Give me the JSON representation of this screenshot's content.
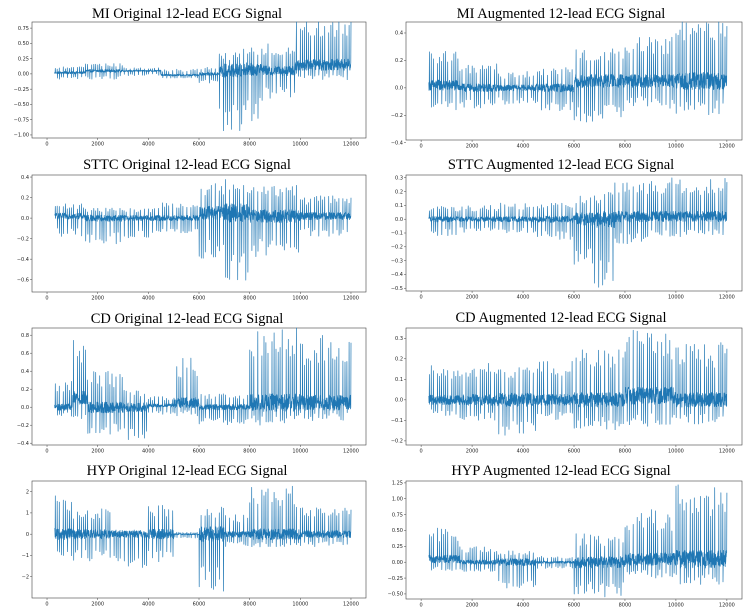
{
  "chart_data": [
    {
      "type": "line",
      "title": "MI Original 12-lead ECG Signal",
      "xlabel": "",
      "ylabel": "",
      "xlim": [
        0,
        12000
      ],
      "ylim": [
        -1.05,
        0.85
      ],
      "xticks": [
        0,
        2000,
        4000,
        6000,
        8000,
        10000,
        12000
      ],
      "yticks": [
        0.75,
        0.5,
        0.25,
        0.0,
        -0.25,
        -0.5,
        -0.75,
        -1.0
      ],
      "ytick_labels": [
        "0.75",
        "0.50",
        "0.25",
        "0.00",
        "−0.25",
        "−0.50",
        "−0.75",
        "−1.00"
      ],
      "series": [
        {
          "name": "ECG",
          "color": "#1f77b4",
          "segments": [
            [
              0,
              1500,
              0.1,
              -0.12,
              0.02
            ],
            [
              1500,
              3000,
              0.12,
              -0.14,
              0.05
            ],
            [
              3000,
              4500,
              0.05,
              -0.08,
              0.05
            ],
            [
              4500,
              6000,
              0.1,
              -0.05,
              -0.02
            ],
            [
              6000,
              6800,
              0.12,
              -0.15,
              0.0
            ],
            [
              6800,
              7700,
              0.3,
              -1.0,
              0.05
            ],
            [
              7700,
              8500,
              0.35,
              -0.85,
              0.08
            ],
            [
              8500,
              9800,
              0.45,
              -0.45,
              0.05
            ],
            [
              9800,
              12000,
              0.8,
              -0.25,
              0.15
            ]
          ],
          "samples": [
            [
              0,
              0.0
            ],
            [
              2000,
              0.0
            ],
            [
              4000,
              0.0
            ],
            [
              6000,
              0.0
            ],
            [
              8000,
              0.0
            ],
            [
              10000,
              0.1
            ],
            [
              12000,
              0.1
            ]
          ]
        }
      ]
    },
    {
      "type": "line",
      "title": "MI Augmented 12-lead ECG Signal",
      "xlabel": "",
      "ylabel": "",
      "xlim": [
        0,
        12000
      ],
      "ylim": [
        -0.38,
        0.48
      ],
      "xticks": [
        0,
        2000,
        4000,
        6000,
        8000,
        10000,
        12000
      ],
      "yticks": [
        0.4,
        0.2,
        0.0,
        -0.2,
        -0.4
      ],
      "ytick_labels": [
        "0.4",
        "0.2",
        "0.0",
        "−0.2",
        "−0.4"
      ],
      "series": [
        {
          "name": "ECG",
          "color": "#1f77b4",
          "segments": [
            [
              0,
              1500,
              0.25,
              -0.18,
              0.02
            ],
            [
              1500,
              3000,
              0.18,
              -0.15,
              0.0
            ],
            [
              3000,
              4500,
              0.12,
              -0.12,
              0.0
            ],
            [
              4500,
              6000,
              0.15,
              -0.18,
              0.0
            ],
            [
              6000,
              8000,
              0.25,
              -0.3,
              0.05
            ],
            [
              8000,
              10000,
              0.32,
              -0.2,
              0.05
            ],
            [
              10000,
              12000,
              0.45,
              -0.25,
              0.05
            ]
          ],
          "samples": [
            [
              0,
              0.0
            ],
            [
              4000,
              0.0
            ],
            [
              8000,
              0.05
            ],
            [
              12000,
              0.0
            ]
          ]
        }
      ]
    },
    {
      "type": "line",
      "title": "STTC Original 12-lead ECG Signal",
      "xlabel": "",
      "ylabel": "",
      "xlim": [
        0,
        12000
      ],
      "ylim": [
        -0.72,
        0.42
      ],
      "xticks": [
        0,
        2000,
        4000,
        6000,
        8000,
        10000,
        12000
      ],
      "yticks": [
        0.4,
        0.2,
        0.0,
        -0.2,
        -0.4,
        -0.6
      ],
      "ytick_labels": [
        "0.4",
        "0.2",
        "0.0",
        "−0.2",
        "−0.4",
        "−0.6"
      ],
      "series": [
        {
          "name": "ECG",
          "color": "#1f77b4",
          "segments": [
            [
              0,
              1500,
              0.12,
              -0.2,
              0.02
            ],
            [
              1500,
              3000,
              0.1,
              -0.25,
              0.0
            ],
            [
              3000,
              4500,
              0.1,
              -0.2,
              0.0
            ],
            [
              4500,
              6000,
              0.15,
              -0.15,
              0.0
            ],
            [
              6000,
              7000,
              0.3,
              -0.45,
              0.05
            ],
            [
              7000,
              8000,
              0.35,
              -0.68,
              0.05
            ],
            [
              8000,
              10000,
              0.3,
              -0.4,
              0.02
            ],
            [
              10000,
              12000,
              0.2,
              -0.2,
              0.02
            ]
          ],
          "samples": [
            [
              0,
              0.0
            ],
            [
              4000,
              0.0
            ],
            [
              8000,
              0.0
            ],
            [
              12000,
              0.0
            ]
          ]
        }
      ]
    },
    {
      "type": "line",
      "title": "STTC Augmented 12-lead ECG Signal",
      "xlabel": "",
      "ylabel": "",
      "xlim": [
        0,
        12000
      ],
      "ylim": [
        -0.52,
        0.32
      ],
      "xticks": [
        0,
        2000,
        4000,
        6000,
        8000,
        10000,
        12000
      ],
      "yticks": [
        0.3,
        0.2,
        0.1,
        0.0,
        -0.1,
        -0.2,
        -0.3,
        -0.4,
        -0.5
      ],
      "ytick_labels": [
        "0.3",
        "0.2",
        "0.1",
        "0.0",
        "−0.1",
        "−0.2",
        "−0.3",
        "−0.4",
        "−0.5"
      ],
      "series": [
        {
          "name": "ECG",
          "color": "#1f77b4",
          "segments": [
            [
              0,
              1500,
              0.1,
              -0.12,
              0.0
            ],
            [
              1500,
              3000,
              0.1,
              -0.1,
              0.0
            ],
            [
              3000,
              4500,
              0.12,
              -0.1,
              0.0
            ],
            [
              4500,
              6000,
              0.12,
              -0.15,
              0.0
            ],
            [
              6000,
              6800,
              0.18,
              -0.35,
              0.0
            ],
            [
              6800,
              7600,
              0.2,
              -0.5,
              0.0
            ],
            [
              7600,
              9000,
              0.25,
              -0.2,
              0.02
            ],
            [
              9000,
              12000,
              0.28,
              -0.15,
              0.02
            ]
          ],
          "samples": [
            [
              0,
              0.0
            ],
            [
              6000,
              0.0
            ],
            [
              12000,
              0.0
            ]
          ]
        }
      ]
    },
    {
      "type": "line",
      "title": "CD Original 12-lead ECG Signal",
      "xlabel": "",
      "ylabel": "",
      "xlim": [
        0,
        12000
      ],
      "ylim": [
        -0.42,
        0.88
      ],
      "xticks": [
        0,
        2000,
        4000,
        6000,
        8000,
        10000,
        12000
      ],
      "yticks": [
        0.8,
        0.6,
        0.4,
        0.2,
        0.0,
        -0.2,
        -0.4
      ],
      "ytick_labels": [
        "0.8",
        "0.6",
        "0.4",
        "0.2",
        "0.0",
        "−0.2",
        "−0.4"
      ],
      "series": [
        {
          "name": "ECG",
          "color": "#1f77b4",
          "segments": [
            [
              0,
              1000,
              0.3,
              -0.1,
              0.0
            ],
            [
              1000,
              1600,
              0.65,
              -0.25,
              0.1
            ],
            [
              1600,
              3000,
              0.4,
              -0.3,
              0.0
            ],
            [
              3000,
              4000,
              0.2,
              -0.38,
              0.0
            ],
            [
              4000,
              5000,
              0.1,
              -0.1,
              0.02
            ],
            [
              5000,
              6000,
              0.5,
              -0.15,
              0.05
            ],
            [
              6000,
              8000,
              0.15,
              -0.2,
              0.0
            ],
            [
              8000,
              10000,
              0.85,
              -0.25,
              0.05
            ],
            [
              10000,
              12000,
              0.75,
              -0.2,
              0.05
            ]
          ],
          "samples": [
            [
              0,
              0.0
            ],
            [
              6000,
              0.0
            ],
            [
              12000,
              0.0
            ]
          ]
        }
      ]
    },
    {
      "type": "line",
      "title": "CD Augmented 12-lead ECG Signal",
      "xlabel": "",
      "ylabel": "",
      "xlim": [
        0,
        12000
      ],
      "ylim": [
        -0.22,
        0.35
      ],
      "xticks": [
        0,
        2000,
        4000,
        6000,
        8000,
        10000,
        12000
      ],
      "yticks": [
        0.3,
        0.2,
        0.1,
        0.0,
        -0.1,
        -0.2
      ],
      "ytick_labels": [
        "0.3",
        "0.2",
        "0.1",
        "0.0",
        "−0.1",
        "−0.2"
      ],
      "series": [
        {
          "name": "ECG",
          "color": "#1f77b4",
          "segments": [
            [
              0,
              1500,
              0.18,
              -0.08,
              0.0
            ],
            [
              1500,
              3000,
              0.2,
              -0.1,
              0.0
            ],
            [
              3000,
              4500,
              0.18,
              -0.18,
              0.0
            ],
            [
              4500,
              6000,
              0.2,
              -0.1,
              0.0
            ],
            [
              6000,
              8000,
              0.25,
              -0.15,
              0.0
            ],
            [
              8000,
              10000,
              0.32,
              -0.15,
              0.02
            ],
            [
              10000,
              12000,
              0.28,
              -0.12,
              0.0
            ]
          ],
          "samples": [
            [
              0,
              0.0
            ],
            [
              6000,
              0.0
            ],
            [
              12000,
              0.0
            ]
          ]
        }
      ]
    },
    {
      "type": "line",
      "title": "HYP Original 12-lead ECG Signal",
      "xlabel": "",
      "ylabel": "",
      "xlim": [
        0,
        12000
      ],
      "ylim": [
        -3.0,
        2.5
      ],
      "xticks": [
        0,
        2000,
        4000,
        6000,
        8000,
        10000,
        12000
      ],
      "yticks": [
        2,
        1,
        0,
        -1,
        -2
      ],
      "ytick_labels": [
        "2",
        "1",
        "0",
        "−1",
        "−2"
      ],
      "series": [
        {
          "name": "ECG",
          "color": "#1f77b4",
          "segments": [
            [
              0,
              1000,
              1.9,
              -1.1,
              0.0
            ],
            [
              1000,
              2500,
              1.2,
              -1.3,
              0.0
            ],
            [
              2500,
              4000,
              0.2,
              -1.6,
              0.0
            ],
            [
              4000,
              5000,
              1.4,
              -1.3,
              0.0
            ],
            [
              5000,
              6000,
              0.1,
              -0.2,
              0.0
            ],
            [
              6000,
              7000,
              1.3,
              -2.7,
              0.0
            ],
            [
              7000,
              8000,
              1.0,
              -0.6,
              0.0
            ],
            [
              8000,
              10000,
              2.3,
              -0.6,
              0.0
            ],
            [
              10000,
              12000,
              1.3,
              -0.6,
              0.0
            ]
          ],
          "samples": [
            [
              0,
              0.0
            ],
            [
              6000,
              0.0
            ],
            [
              12000,
              0.0
            ]
          ]
        }
      ]
    },
    {
      "type": "line",
      "title": "HYP Augmented 12-lead ECG Signal",
      "xlabel": "",
      "ylabel": "",
      "xlim": [
        0,
        12000
      ],
      "ylim": [
        -0.58,
        1.28
      ],
      "xticks": [
        0,
        2000,
        4000,
        6000,
        8000,
        10000,
        12000
      ],
      "yticks": [
        1.25,
        1.0,
        0.75,
        0.5,
        0.25,
        0.0,
        -0.25,
        -0.5
      ],
      "ytick_labels": [
        "1.25",
        "1.00",
        "0.75",
        "0.50",
        "0.25",
        "0.00",
        "−0.25",
        "−0.50"
      ],
      "series": [
        {
          "name": "ECG",
          "color": "#1f77b4",
          "segments": [
            [
              0,
              1500,
              0.5,
              -0.2,
              0.05
            ],
            [
              1500,
              3000,
              0.25,
              -0.15,
              0.0
            ],
            [
              3000,
              4500,
              0.2,
              -0.45,
              0.0
            ],
            [
              4500,
              6000,
              0.1,
              -0.1,
              0.0
            ],
            [
              6000,
              8000,
              0.45,
              -0.55,
              0.0
            ],
            [
              8000,
              10000,
              0.8,
              -0.3,
              0.05
            ],
            [
              10000,
              12000,
              1.18,
              -0.4,
              0.05
            ]
          ],
          "samples": [
            [
              0,
              0.0
            ],
            [
              6000,
              0.0
            ],
            [
              12000,
              0.0
            ]
          ]
        }
      ]
    }
  ]
}
